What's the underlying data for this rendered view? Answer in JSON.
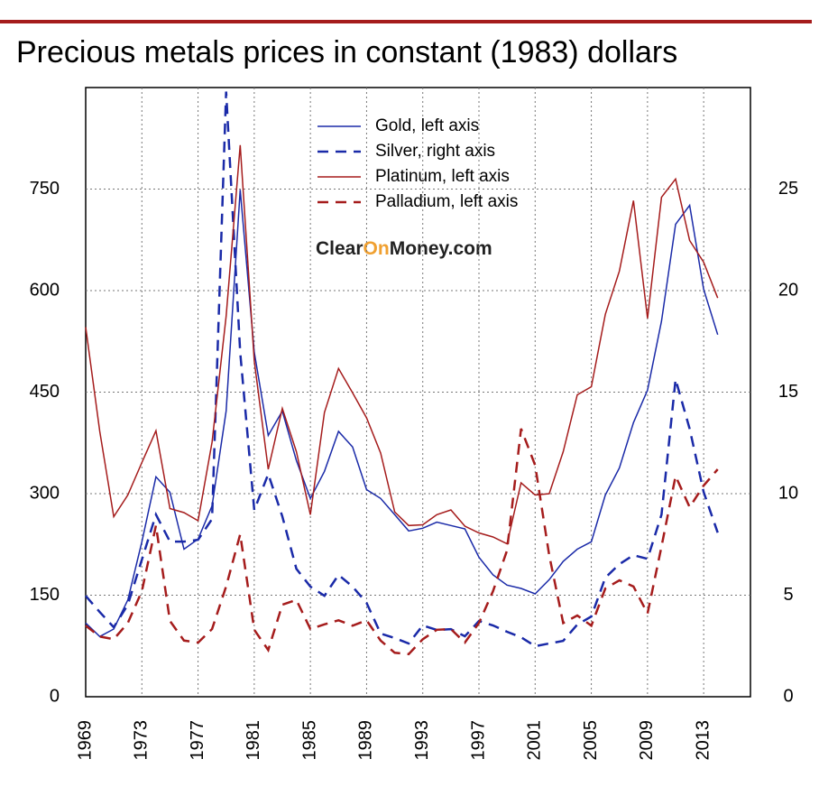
{
  "chart_data": {
    "type": "line",
    "title": "Precious metals prices in constant (1983) dollars",
    "watermark": [
      "Clear",
      "On",
      "Money.com"
    ],
    "x": [
      1969,
      1970,
      1971,
      1972,
      1973,
      1974,
      1975,
      1976,
      1977,
      1978,
      1979,
      1980,
      1981,
      1982,
      1983,
      1984,
      1985,
      1986,
      1987,
      1988,
      1989,
      1990,
      1991,
      1992,
      1993,
      1994,
      1995,
      1996,
      1997,
      1998,
      1999,
      2000,
      2001,
      2002,
      2003,
      2004,
      2005,
      2006,
      2007,
      2008,
      2009,
      2010,
      2011,
      2012,
      2013,
      2014
    ],
    "xlim": [
      1969,
      2016.33
    ],
    "xticks": [
      1969,
      1973,
      1977,
      1981,
      1985,
      1989,
      1993,
      1997,
      2001,
      2005,
      2009,
      2013
    ],
    "ylim": [
      0,
      900
    ],
    "yticks": [
      0,
      150,
      300,
      450,
      600,
      750
    ],
    "y2lim": [
      0,
      30
    ],
    "y2ticks": [
      0,
      5,
      10,
      15,
      20,
      25
    ],
    "grid": true,
    "legend": "top",
    "series": [
      {
        "name": "Gold, left axis",
        "color": "#1a2aa8",
        "dashed": false,
        "values": [
          109,
          89,
          100,
          143,
          229,
          325,
          302,
          218,
          233,
          282,
          422,
          749,
          509,
          386,
          422,
          349,
          293,
          333,
          392,
          369,
          306,
          293,
          269,
          245,
          249,
          258,
          253,
          248,
          206,
          180,
          165,
          160,
          152,
          173,
          200,
          218,
          229,
          298,
          338,
          405,
          453,
          555,
          698,
          726,
          602,
          535
        ]
      },
      {
        "name": "Silver, right axis",
        "color": "#1a2aa8",
        "dashed": true,
        "axis": "y2",
        "values": [
          4.97,
          4.17,
          3.42,
          4.53,
          6.75,
          8.97,
          7.64,
          7.64,
          7.73,
          8.75,
          29.8,
          16.96,
          9.19,
          10.97,
          8.88,
          6.3,
          5.42,
          4.97,
          6.0,
          5.42,
          4.62,
          3.11,
          2.89,
          2.62,
          3.51,
          3.29,
          3.33,
          2.98,
          3.73,
          3.51,
          3.2,
          2.93,
          2.49,
          2.62,
          2.75,
          3.55,
          3.95,
          5.86,
          6.53,
          6.97,
          6.79,
          8.97,
          15.63,
          13.19,
          10.08,
          8.08
        ]
      },
      {
        "name": "Platinum, left axis",
        "color": "#a51c1c",
        "dashed": false,
        "values": [
          546,
          392,
          266,
          298,
          346,
          393,
          278,
          272,
          260,
          376,
          562,
          815,
          496,
          336,
          426,
          362,
          269,
          420,
          485,
          449,
          412,
          360,
          273,
          253,
          254,
          269,
          276,
          252,
          242,
          236,
          226,
          316,
          298,
          300,
          362,
          446,
          458,
          565,
          629,
          733,
          559,
          738,
          765,
          674,
          642,
          589
        ]
      },
      {
        "name": "Palladium, left axis",
        "color": "#a51c1c",
        "dashed": true,
        "values": [
          105,
          89,
          85,
          109,
          156,
          253,
          112,
          83,
          80,
          100,
          163,
          240,
          99,
          69,
          136,
          143,
          100,
          107,
          113,
          105,
          113,
          83,
          65,
          63,
          85,
          99,
          100,
          80,
          109,
          156,
          216,
          396,
          342,
          209,
          109,
          120,
          105,
          160,
          172,
          163,
          123,
          222,
          326,
          280,
          312,
          336
        ]
      }
    ]
  }
}
